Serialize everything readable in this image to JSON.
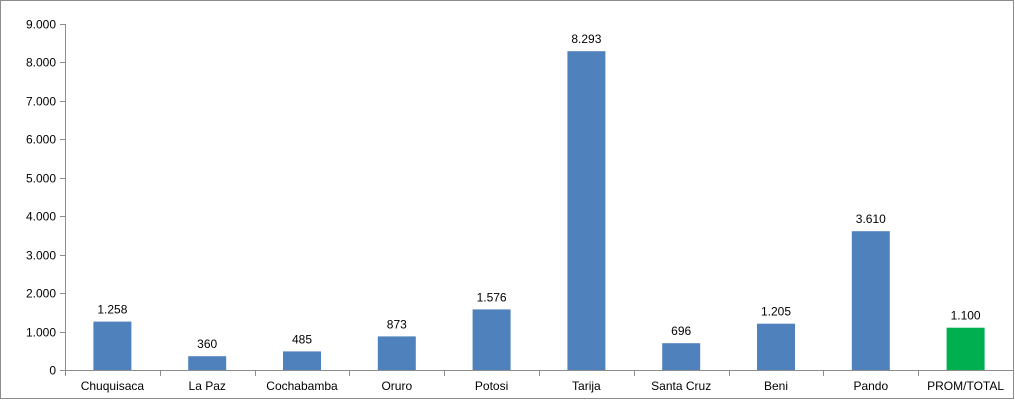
{
  "chart_data": {
    "type": "bar",
    "title": "",
    "xlabel": "",
    "ylabel": "",
    "ylim": [
      0,
      9000
    ],
    "y_ticks": [
      0,
      1000,
      2000,
      3000,
      4000,
      5000,
      6000,
      7000,
      8000,
      9000
    ],
    "y_tick_labels": [
      "0",
      "1.000",
      "2.000",
      "3.000",
      "4.000",
      "5.000",
      "6.000",
      "7.000",
      "8.000",
      "9.000"
    ],
    "grid": false,
    "legend": "none",
    "categories": [
      "Chuquisaca",
      "La Paz",
      "Cochabamba",
      "Oruro",
      "Potosi",
      "Tarija",
      "Santa Cruz",
      "Beni",
      "Pando",
      "PROM/TOTAL"
    ],
    "values": [
      1258,
      360,
      485,
      873,
      1576,
      8293,
      696,
      1205,
      3610,
      1100
    ],
    "value_labels": [
      "1.258",
      "360",
      "485",
      "873",
      "1.576",
      "8.293",
      "696",
      "1.205",
      "3.610",
      "1.100"
    ],
    "colors": [
      "#4f81bd",
      "#4f81bd",
      "#4f81bd",
      "#4f81bd",
      "#4f81bd",
      "#4f81bd",
      "#4f81bd",
      "#4f81bd",
      "#4f81bd",
      "#00b050"
    ]
  }
}
